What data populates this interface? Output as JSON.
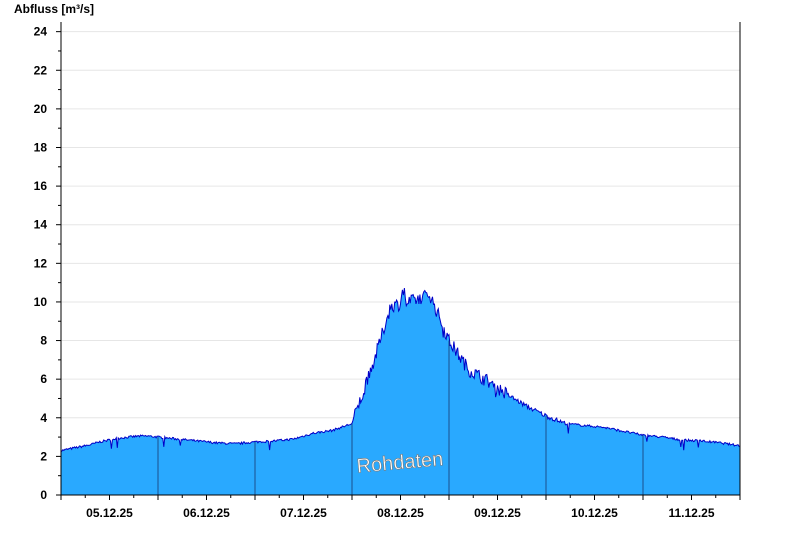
{
  "chart_data": {
    "type": "area",
    "title": "",
    "xlabel": "",
    "ylabel": "Abfluss [m³/s]",
    "ylim": [
      0,
      24.5
    ],
    "y_ticks": [
      0,
      2,
      4,
      6,
      8,
      10,
      12,
      14,
      16,
      18,
      20,
      22,
      24
    ],
    "x_tick_labels": [
      "05.12.25",
      "06.12.25",
      "07.12.25",
      "08.12.25",
      "09.12.25",
      "10.12.25",
      "11.12.25"
    ],
    "grid": true,
    "legend": "none",
    "annotation": "Rohdaten",
    "colors": {
      "fill": "#29a9ff",
      "line": "#0000c8",
      "day_lines": "#1c4f8c",
      "grid": "#e6e6e6"
    },
    "series": [
      {
        "x": [
          0,
          0.1,
          0.2,
          0.3,
          0.4,
          0.5,
          0.6,
          0.7,
          0.8,
          0.9,
          1.0,
          1.2,
          1.4,
          1.6,
          1.8,
          2.0,
          2.2,
          2.4,
          2.6,
          2.8,
          3.0,
          3.2,
          3.4,
          3.6,
          3.8,
          4.0,
          4.2,
          4.4,
          4.6,
          4.8,
          5.0,
          5.2,
          5.4,
          5.6,
          5.8,
          6.0,
          6.2,
          6.4,
          6.6,
          6.8,
          7.0
        ],
        "values": [
          2.3,
          2.4,
          2.5,
          2.6,
          2.75,
          2.85,
          2.95,
          3.0,
          3.05,
          3.05,
          3.0,
          2.9,
          2.8,
          2.7,
          2.65,
          2.75,
          2.8,
          2.9,
          3.2,
          3.35,
          3.7,
          6.5,
          9.8,
          10.0,
          10.4,
          8.0,
          6.5,
          5.9,
          5.2,
          4.6,
          4.1,
          3.7,
          3.6,
          3.5,
          3.3,
          3.1,
          3.0,
          2.85,
          2.8,
          2.7,
          2.55
        ]
      }
    ]
  }
}
